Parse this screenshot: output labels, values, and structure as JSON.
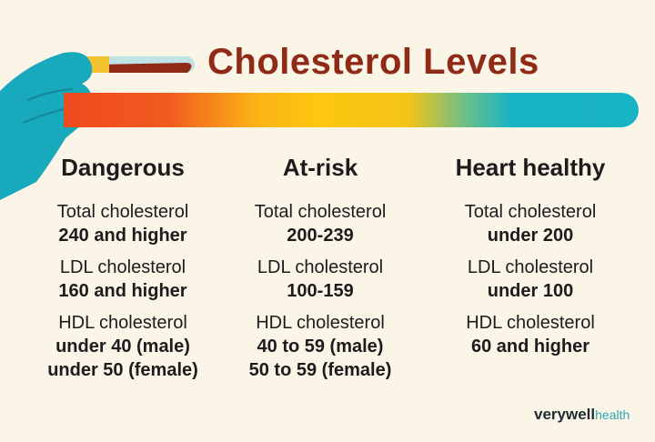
{
  "title": "Cholesterol Levels",
  "colors": {
    "background": "#fbf5e8",
    "title": "#8e2a15",
    "glove": "#19a9bd",
    "gradient": [
      "#ef4a1e",
      "#fdc70f",
      "#19b3c6"
    ]
  },
  "columns": [
    {
      "heading": "Dangerous",
      "items": [
        {
          "label": "Total cholesterol",
          "values": [
            "240 and higher"
          ]
        },
        {
          "label": "LDL cholesterol",
          "values": [
            "160 and higher"
          ]
        },
        {
          "label": "HDL cholesterol",
          "values": [
            "under 40 (male)",
            "under 50 (female)"
          ]
        }
      ]
    },
    {
      "heading": "At-risk",
      "items": [
        {
          "label": "Total cholesterol",
          "values": [
            "200-239"
          ]
        },
        {
          "label": "LDL cholesterol",
          "values": [
            "100-159"
          ]
        },
        {
          "label": "HDL cholesterol",
          "values": [
            "40 to 59 (male)",
            "50 to 59 (female)"
          ]
        }
      ]
    },
    {
      "heading": "Heart healthy",
      "items": [
        {
          "label": "Total cholesterol",
          "values": [
            "under 200"
          ]
        },
        {
          "label": "LDL cholesterol",
          "values": [
            "under 100"
          ]
        },
        {
          "label": "HDL cholesterol",
          "values": [
            "60 and higher"
          ]
        }
      ]
    }
  ],
  "logo": {
    "brand": "verywell",
    "sub": "health"
  }
}
